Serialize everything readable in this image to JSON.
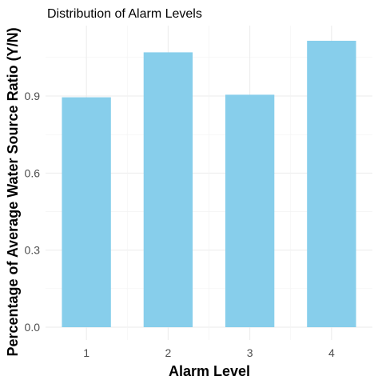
{
  "chart_data": {
    "type": "bar",
    "title": "Distribution of Alarm Levels",
    "xlabel": "Alarm Level",
    "ylabel": "Percentage of Average Water Source Ratio (Y/N)",
    "categories": [
      "1",
      "2",
      "3",
      "4"
    ],
    "values": [
      0.895,
      1.07,
      0.905,
      1.115
    ],
    "ylim": [
      0,
      1.17
    ],
    "y_ticks": [
      "0.0",
      "0.3",
      "0.6",
      "0.9"
    ],
    "grid": true,
    "bar_color": "#87CEEB"
  }
}
